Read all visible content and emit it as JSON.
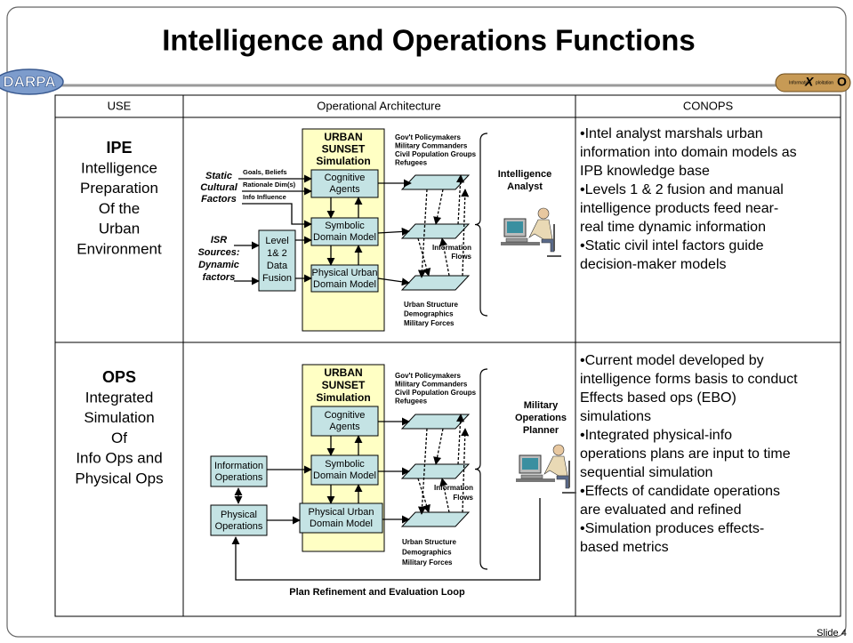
{
  "header": {
    "title": "Intelligence and Operations Functions",
    "logo_left": "DARPA",
    "logo_right": [
      "Information",
      "X",
      "ploitation",
      "O"
    ]
  },
  "table": {
    "headers": [
      "USE",
      "Operational Architecture",
      "CONOPS"
    ],
    "rows": [
      {
        "use": {
          "abbr": "IPE",
          "lines": [
            "Intelligence",
            "Preparation",
            "Of the",
            "Urban",
            "Environment"
          ]
        },
        "diagram": {
          "sim": [
            "URBAN",
            "SUNSET",
            "Simulation"
          ],
          "cognitive": [
            "Cognitive",
            "Agents"
          ],
          "symbolic": [
            "Symbolic",
            "Domain Model"
          ],
          "physical": [
            "Physical Urban",
            "Domain Model"
          ],
          "fusion": [
            "Level",
            "1& 2",
            "Data",
            "Fusion"
          ],
          "static_factors": [
            "Static",
            "Cultural",
            "Factors"
          ],
          "isr": [
            "ISR",
            "Sources:",
            "Dynamic",
            "factors"
          ],
          "inputs": [
            "Goals, Beliefs",
            "Rationale Dim(s)",
            "Info Influence"
          ],
          "top_groups": [
            "Gov't Policymakers",
            "Military Commanders",
            "Civil Population Groups",
            "Refugees"
          ],
          "bottom_groups": [
            "Urban Structure",
            "Demographics",
            "Military Forces"
          ],
          "flows": [
            "Information",
            "Flows"
          ],
          "actor": [
            "Intelligence",
            "Analyst"
          ]
        },
        "conops": [
          "•Intel analyst  marshals urban",
          "information into domain models as",
          "IPB knowledge base",
          "•Levels 1 & 2 fusion and manual",
          "intelligence products feed near-",
          "real time dynamic information",
          "•Static civil intel factors guide",
          "decision-maker models"
        ]
      },
      {
        "use": {
          "abbr": "OPS",
          "lines": [
            "Integrated",
            "Simulation",
            "Of",
            "Info Ops and",
            "Physical Ops"
          ]
        },
        "diagram": {
          "sim": [
            "URBAN",
            "SUNSET",
            "Simulation"
          ],
          "cognitive": [
            "Cognitive",
            "Agents"
          ],
          "symbolic": [
            "Symbolic",
            "Domain Model"
          ],
          "physical": [
            "Physical Urban",
            "Domain Model"
          ],
          "info_ops": [
            "Information",
            "Operations"
          ],
          "phys_ops": [
            "Physical",
            "Operations"
          ],
          "top_groups": [
            "Gov't Policymakers",
            "Military Commanders",
            "Civil Population Groups",
            "Refugees"
          ],
          "bottom_groups": [
            "Urban Structure",
            "Demographics",
            "Military Forces"
          ],
          "flows": [
            "Information",
            "Flows"
          ],
          "actor": [
            "Military",
            "Operations",
            "Planner"
          ],
          "loop": "Plan Refinement and Evaluation Loop"
        },
        "conops": [
          "•Current model developed by",
          "intelligence forms basis to conduct",
          "Effects based ops (EBO)",
          "simulations",
          "•Integrated physical-info",
          "operations plans are input to time",
          "sequential simulation",
          "•Effects of candidate operations",
          "are evaluated and refined",
          "•Simulation produces effects-",
          "based metrics"
        ]
      }
    ]
  },
  "footer": {
    "slide": "Slide 4"
  }
}
